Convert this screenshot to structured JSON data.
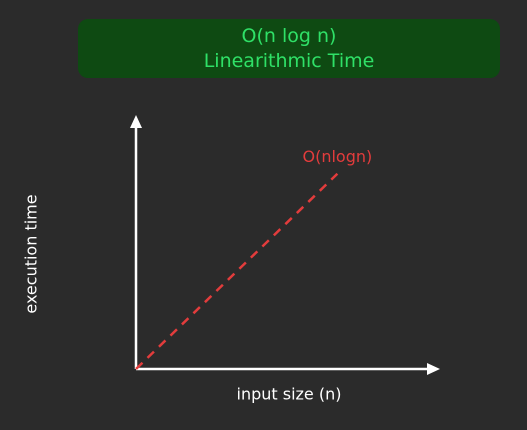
{
  "header": {
    "line1": "O(n log n)",
    "line2": "Linearithmic Time"
  },
  "chart_data": {
    "type": "line",
    "title": "O(n log n)",
    "subtitle": "Linearithmic Time",
    "xlabel": "input size (n)",
    "ylabel": "execution time",
    "series": [
      {
        "name": "O(nlogn)",
        "x": [
          0,
          1
        ],
        "y": [
          0,
          1
        ],
        "color": "#e23c3c",
        "dashed": true
      }
    ],
    "xlim": [
      0,
      1.47
    ],
    "ylim": [
      0,
      1.26
    ],
    "grid": false
  },
  "colors": {
    "background": "#2b2b2b",
    "header_bg": "#0e4a12",
    "header_text": "#2fe067",
    "axis": "#ffffff",
    "series": "#e23c3c"
  }
}
